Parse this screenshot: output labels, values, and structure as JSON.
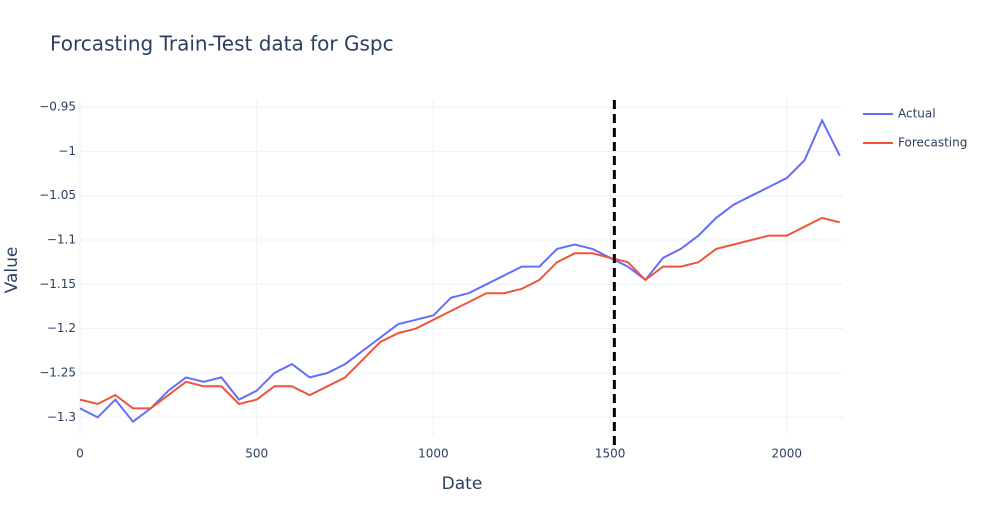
{
  "chart_data": {
    "type": "line",
    "title": "Forcasting Train-Test data for Gspc",
    "x_label": "Date",
    "y_label": "Value",
    "x": [
      0,
      50,
      100,
      150,
      200,
      250,
      300,
      350,
      400,
      450,
      500,
      550,
      600,
      650,
      700,
      750,
      800,
      850,
      900,
      950,
      1000,
      1050,
      1100,
      1150,
      1200,
      1250,
      1300,
      1350,
      1400,
      1450,
      1500,
      1550,
      1600,
      1650,
      1700,
      1750,
      1800,
      1850,
      1900,
      1950,
      2000,
      2050,
      2100,
      2150
    ],
    "series": [
      {
        "name": "Actual",
        "color": "#636efa",
        "values": [
          -1.29,
          -1.3,
          -1.28,
          -1.305,
          -1.29,
          -1.27,
          -1.255,
          -1.26,
          -1.255,
          -1.28,
          -1.27,
          -1.25,
          -1.24,
          -1.255,
          -1.25,
          -1.24,
          -1.225,
          -1.21,
          -1.195,
          -1.19,
          -1.185,
          -1.165,
          -1.16,
          -1.15,
          -1.14,
          -1.13,
          -1.13,
          -1.11,
          -1.105,
          -1.11,
          -1.12,
          -1.13,
          -1.145,
          -1.12,
          -1.11,
          -1.095,
          -1.075,
          -1.06,
          -1.05,
          -1.04,
          -1.03,
          -1.01,
          -0.965,
          -1.005
        ]
      },
      {
        "name": "Forecasting",
        "color": "#ef553b",
        "values": [
          -1.28,
          -1.285,
          -1.275,
          -1.29,
          -1.29,
          -1.275,
          -1.26,
          -1.265,
          -1.265,
          -1.285,
          -1.28,
          -1.265,
          -1.265,
          -1.275,
          -1.265,
          -1.255,
          -1.235,
          -1.215,
          -1.205,
          -1.2,
          -1.19,
          -1.18,
          -1.17,
          -1.16,
          -1.16,
          -1.155,
          -1.145,
          -1.125,
          -1.115,
          -1.115,
          -1.12,
          -1.125,
          -1.145,
          -1.13,
          -1.13,
          -1.125,
          -1.11,
          -1.105,
          -1.1,
          -1.095,
          -1.095,
          -1.085,
          -1.075,
          -1.08
        ]
      }
    ],
    "vline": 1512,
    "xlim": [
      0,
      2159
    ],
    "xticks": [
      0,
      500,
      1000,
      1500,
      2000
    ],
    "ylim": [
      -1.32,
      -0.942
    ],
    "yticks": [
      {
        "value": -1.3,
        "label": "−1.3"
      },
      {
        "value": -1.25,
        "label": "−1.25"
      },
      {
        "value": -1.2,
        "label": "−1.2"
      },
      {
        "value": -1.15,
        "label": "−1.15"
      },
      {
        "value": -1.1,
        "label": "−1.1"
      },
      {
        "value": -1.05,
        "label": "−1.05"
      },
      {
        "value": -1,
        "label": "−1"
      },
      {
        "value": -0.95,
        "label": "−0.95"
      }
    ],
    "grid": true,
    "legend": "top-right"
  }
}
